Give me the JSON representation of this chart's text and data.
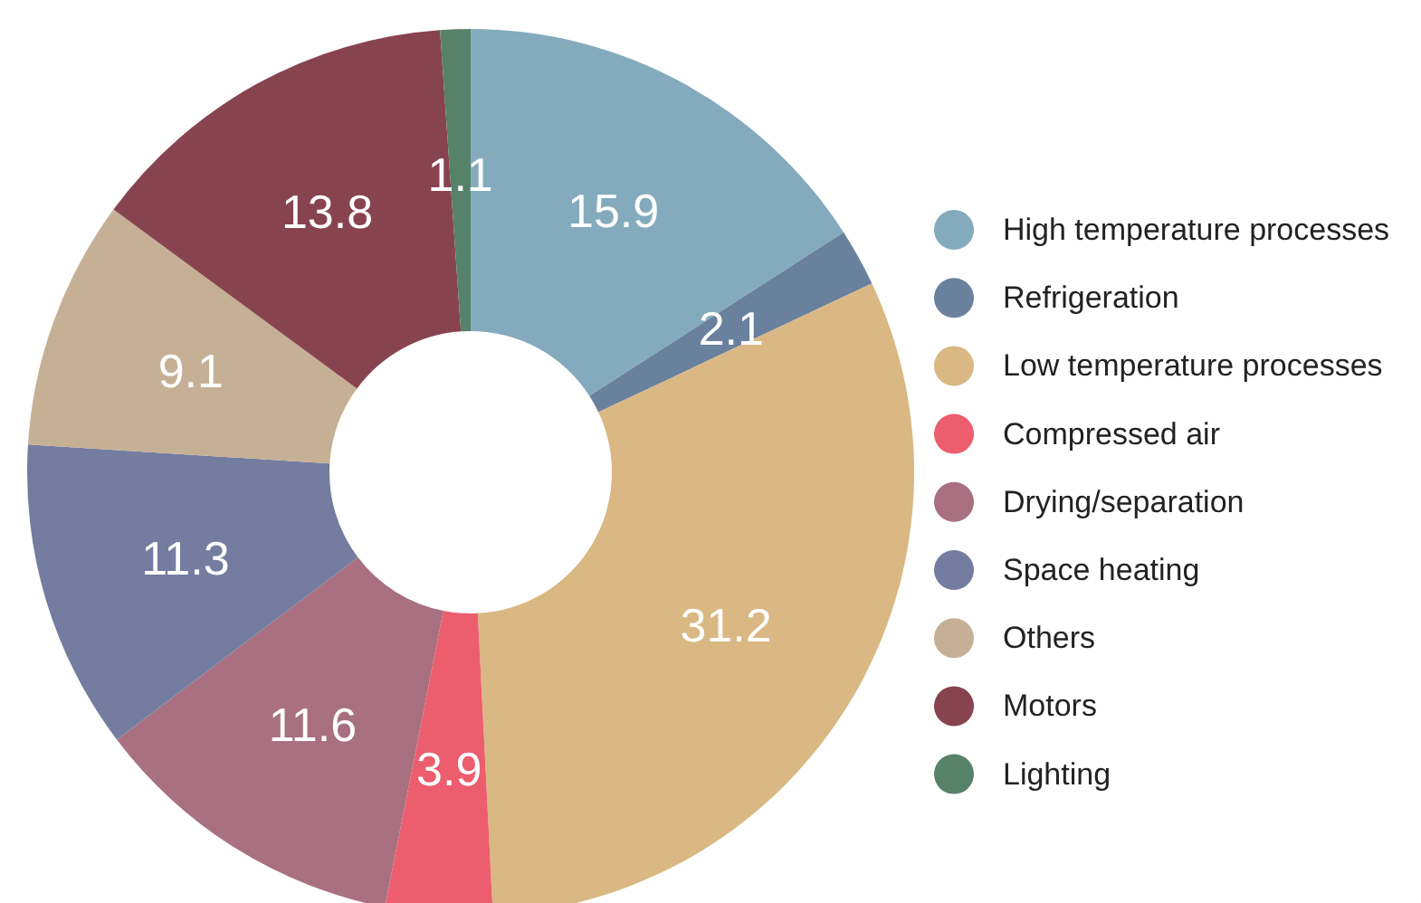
{
  "chart_data": {
    "type": "donut",
    "categories": [
      "High temperature processes",
      "Refrigeration",
      "Low temperature processes",
      "Compressed air",
      "Drying/separation",
      "Space heating",
      "Others",
      "Motors",
      "Lighting"
    ],
    "values": [
      15.9,
      2.1,
      31.2,
      3.9,
      11.6,
      11.3,
      9.1,
      13.8,
      1.1
    ],
    "colors": [
      "#84abbd",
      "#6a819e",
      "#d9b883",
      "#ec5e6d",
      "#a87080",
      "#747da0",
      "#c6b095",
      "#87444f",
      "#57826a"
    ],
    "data_labels": true,
    "legend": "right"
  }
}
